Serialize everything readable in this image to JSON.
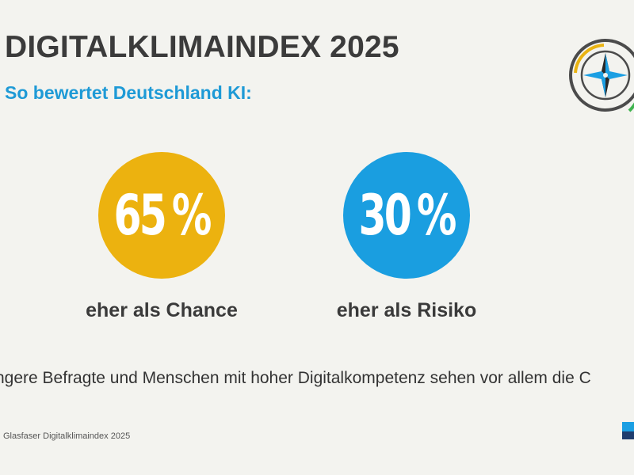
{
  "header": {
    "title": "DIGITALKLIMAINDEX 2025",
    "subtitle": "So bewertet Deutschland KI:"
  },
  "stats": [
    {
      "value": "65",
      "unit": "%",
      "label": "eher als Chance",
      "color": "#ecb20f",
      "percent": 65
    },
    {
      "value": "30",
      "unit": "%",
      "label": "eher als Risiko",
      "color": "#1a9ee0",
      "percent": 30
    }
  ],
  "footnote": "ngere Befragte und Menschen mit hoher Digitalkompetenz sehen vor allem die C",
  "source": "Glasfaser Digitalklimaindex 2025",
  "logo": {
    "icon": "compass-icon",
    "colors": {
      "ring": "#4b4b4b",
      "arc_yellow": "#e9b312",
      "arc_green": "#3fb34f",
      "star_blue": "#1b9fe3",
      "star_dark": "#2a2a2a"
    }
  }
}
